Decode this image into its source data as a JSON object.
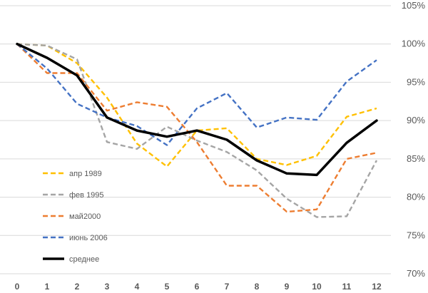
{
  "chart_data": {
    "type": "line",
    "title": "",
    "xlabel": "",
    "ylabel": "",
    "x": [
      0,
      1,
      2,
      3,
      4,
      5,
      6,
      7,
      8,
      9,
      10,
      11,
      12
    ],
    "x_tick_labels": [
      "0",
      "1",
      "2",
      "3",
      "4",
      "5",
      "6",
      "7",
      "8",
      "9",
      "10",
      "11",
      "12"
    ],
    "ylim": [
      70,
      105
    ],
    "y_tick_values": [
      70,
      75,
      80,
      85,
      90,
      95,
      100,
      105
    ],
    "y_tick_labels": [
      "70%",
      "75%",
      "80%",
      "85%",
      "90%",
      "95%",
      "100%",
      "105%"
    ],
    "y_axis_position": "right",
    "grid": "horizontal",
    "legend_position": "left-middle",
    "series": [
      {
        "name": "апр 1989",
        "color": "#FFC000",
        "dash": "dashed",
        "values": [
          100,
          99.8,
          97.5,
          93.0,
          87.0,
          84.0,
          88.7,
          89.0,
          85.0,
          84.2,
          85.4,
          90.5,
          91.6
        ]
      },
      {
        "name": "фев 1995",
        "color": "#A5A5A5",
        "dash": "dashed",
        "values": [
          100,
          99.8,
          98.0,
          87.2,
          86.3,
          89.2,
          87.4,
          85.9,
          83.5,
          79.8,
          77.4,
          77.5,
          84.8
        ]
      },
      {
        "name": "май2000",
        "color": "#ED7D31",
        "dash": "dashed",
        "values": [
          100,
          96.2,
          96.2,
          91.3,
          92.4,
          91.8,
          87.2,
          81.5,
          81.5,
          78.1,
          78.4,
          85.0,
          85.8
        ]
      },
      {
        "name": "июнь 2006",
        "color": "#4472C4",
        "dash": "dashed",
        "values": [
          100,
          96.8,
          92.2,
          90.4,
          89.3,
          86.8,
          91.6,
          93.6,
          89.1,
          90.4,
          90.1,
          95.1,
          97.9
        ]
      },
      {
        "name": "среднее",
        "color": "#000000",
        "dash": "solid",
        "values": [
          100,
          98.2,
          95.9,
          90.4,
          88.7,
          87.9,
          88.7,
          87.5,
          84.8,
          83.1,
          82.9,
          87.1,
          90.0
        ]
      }
    ]
  }
}
